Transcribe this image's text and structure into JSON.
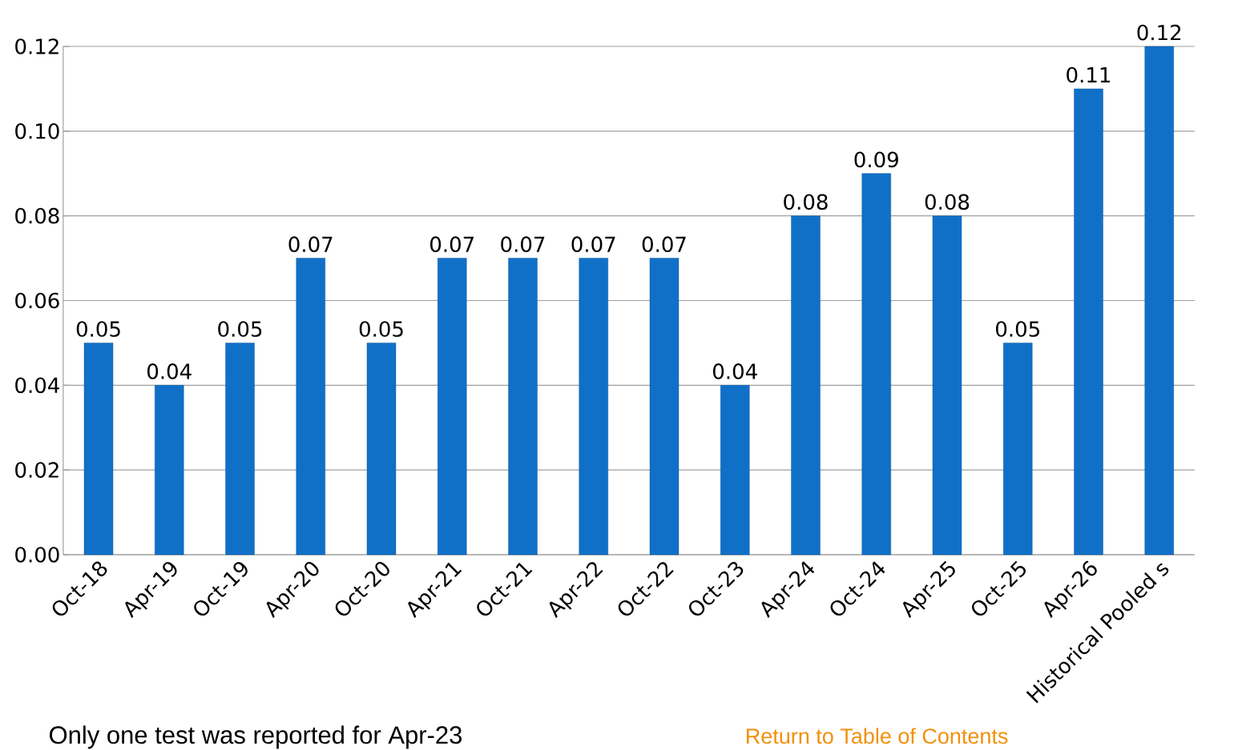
{
  "chart_data": {
    "type": "bar",
    "categories": [
      "Oct-18",
      "Apr-19",
      "Oct-19",
      "Apr-20",
      "Oct-20",
      "Apr-21",
      "Oct-21",
      "Apr-22",
      "Oct-22",
      "Oct-23",
      "Apr-24",
      "Oct-24",
      "Apr-25",
      "Oct-25",
      "Apr-26",
      "Historical Pooled s"
    ],
    "values": [
      0.05,
      0.04,
      0.05,
      0.07,
      0.05,
      0.07,
      0.07,
      0.07,
      0.07,
      0.04,
      0.08,
      0.09,
      0.08,
      0.05,
      0.11,
      0.12
    ],
    "color": "#1070c8",
    "ylim": [
      0,
      0.12
    ],
    "yticks": [
      {
        "value": 0,
        "label": "0.00"
      },
      {
        "value": 0.02,
        "label": "0.02"
      },
      {
        "value": 0.04,
        "label": "0.04"
      },
      {
        "value": 0.06,
        "label": "0.06"
      },
      {
        "value": 0.08,
        "label": "0.08"
      },
      {
        "value": 0.1,
        "label": "0.10"
      },
      {
        "value": 0.12,
        "label": "0.12"
      }
    ],
    "grid": "y",
    "data_labels": true,
    "annotations": [
      "Only one test was reported for Apr-23",
      "Return to Table of Contents"
    ]
  }
}
